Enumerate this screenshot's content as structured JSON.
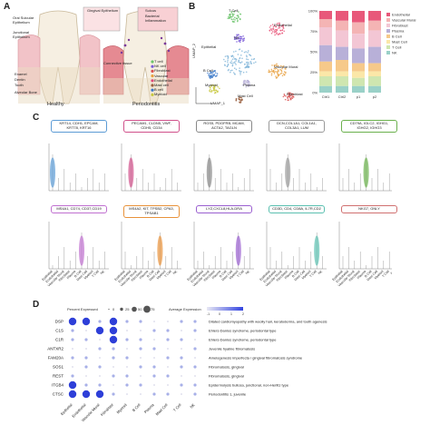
{
  "panels": {
    "a": "A",
    "b": "B",
    "c": "C",
    "d": "D"
  },
  "panel_a": {
    "labels": [
      "Gingival Epithelium",
      "Oral Sulcular Epithelium",
      "Junctional Epithelium",
      "Sulcus",
      "Bacterial Inflammation",
      "Connective tissue",
      "Enamel",
      "Dentin",
      "Tooth",
      "Alveolar Bone"
    ],
    "legend": [
      "T cell",
      "NK cell",
      "Fibroblast",
      "Vascular",
      "Endothelial",
      "Mast cell",
      "B cell",
      "Myeloid"
    ],
    "legend_colors": [
      "#6cc46c",
      "#7a5bd8",
      "#d85050",
      "#e8a040",
      "#e04878",
      "#9a6040",
      "#3a78c8",
      "#c8c840"
    ],
    "bottom_left": "Healthy",
    "bottom_right": "Periodontitis"
  },
  "panel_b": {
    "umap_labels": [
      "T Cell",
      "NK",
      "Endothelial",
      "Epithelial",
      "B Cell",
      "Myeloid",
      "Plasma",
      "Vascular Mural",
      "Mast Cell",
      "Fibroblast"
    ],
    "axis_x": "UMAP_1",
    "axis_y": "UMAP_2",
    "bar_categories": [
      "Ctrl1",
      "Ctrl2",
      "p1",
      "p2"
    ],
    "legend": [
      "Endothelial",
      "Vascular Mural",
      "Fibroblast",
      "Plasma",
      "B Cell",
      "Mast Cell",
      "T Cell",
      "NK"
    ],
    "legend_colors": [
      "#e8587a",
      "#f4b4b4",
      "#f3c6d4",
      "#b8b0d8",
      "#f6c98a",
      "#fbe7a8",
      "#cfe6b0",
      "#9ad1c8"
    ],
    "y_ticks": [
      "100%",
      "75%",
      "50%",
      "25%",
      "0%"
    ]
  },
  "panel_c": {
    "row1_boxes": [
      {
        "text": "KRT14, CDH1, EPCAM, KRT78, KRT16",
        "color": "#5b9bd5"
      },
      {
        "text": "PECAM1, CLDN5, VWF, CDH5, CD34",
        "color": "#d0508a"
      },
      {
        "text": "RGS5, PDGFRB, MCAM, ACTA2, TAGLN",
        "color": "#888888"
      },
      {
        "text": "DCN,COL1A1, COL1A1, COL3A1, LUM",
        "color": "#999999"
      },
      {
        "text": "CD79A, IGLC2, IGHG1, IGHG2, IGHG3",
        "color": "#6ab04c"
      }
    ],
    "row2_boxes": [
      {
        "text": "MS4A1, CD74, CD37,CD19",
        "color": "#c070d0"
      },
      {
        "text": "MS4A2, KIT, TPSB2, CPA3, TPSAB1",
        "color": "#e8923a"
      },
      {
        "text": "LYZ,CXCL8,HLA-DRA",
        "color": "#9a5fd0"
      },
      {
        "text": "CD3D, CD4, CD8A, IL7R,CD2",
        "color": "#5bc0b0"
      },
      {
        "text": "NKG7, GNLY",
        "color": "#d07070"
      }
    ],
    "x_categories": [
      "Epithelial",
      "Endothelial",
      "Vascular Mural",
      "Fibroblast",
      "Plasma",
      "B Cell",
      "Mast Cell",
      "Myeloid",
      "T Cell",
      "NK"
    ]
  },
  "panel_d": {
    "legend_title_pct": "Percent Expressed",
    "pct_ticks": [
      "0",
      "25",
      "50",
      "75"
    ],
    "legend_title_avg": "Average Expression",
    "avg_ticks": [
      "-1",
      "0",
      "1",
      "2"
    ],
    "genes": [
      "DSP",
      "C1S",
      "C1R",
      "ANTXR2",
      "FAM20A",
      "SOS1",
      "REST",
      "ITGB4",
      "CTSC"
    ],
    "diseases": [
      "Dilated cardiomyopathy with woolly hair, keratoderma, and tooth agenesis",
      "Ehlers-Danlos syndrome, periodontal type",
      "Ehlers-Danlos syndrome, periodontal type",
      "Juvenile hyaline fibromatosis",
      "Amelogenesis imperfecta / gingival fibromatosis syndrome",
      "Fibromatosis, gingival",
      "Fibromatosis, gingival",
      "Epidermolysis bullosa, junctional, non-Herlitz type",
      "Periodontitis 1, juvenile"
    ],
    "x_categories": [
      "Epithelial",
      "Endothelial",
      "Vascular Mural",
      "Fibroblast",
      "Myeloid",
      "B Cell",
      "Plasma",
      "Mast Cell",
      "T Cell",
      "NK"
    ]
  }
}
